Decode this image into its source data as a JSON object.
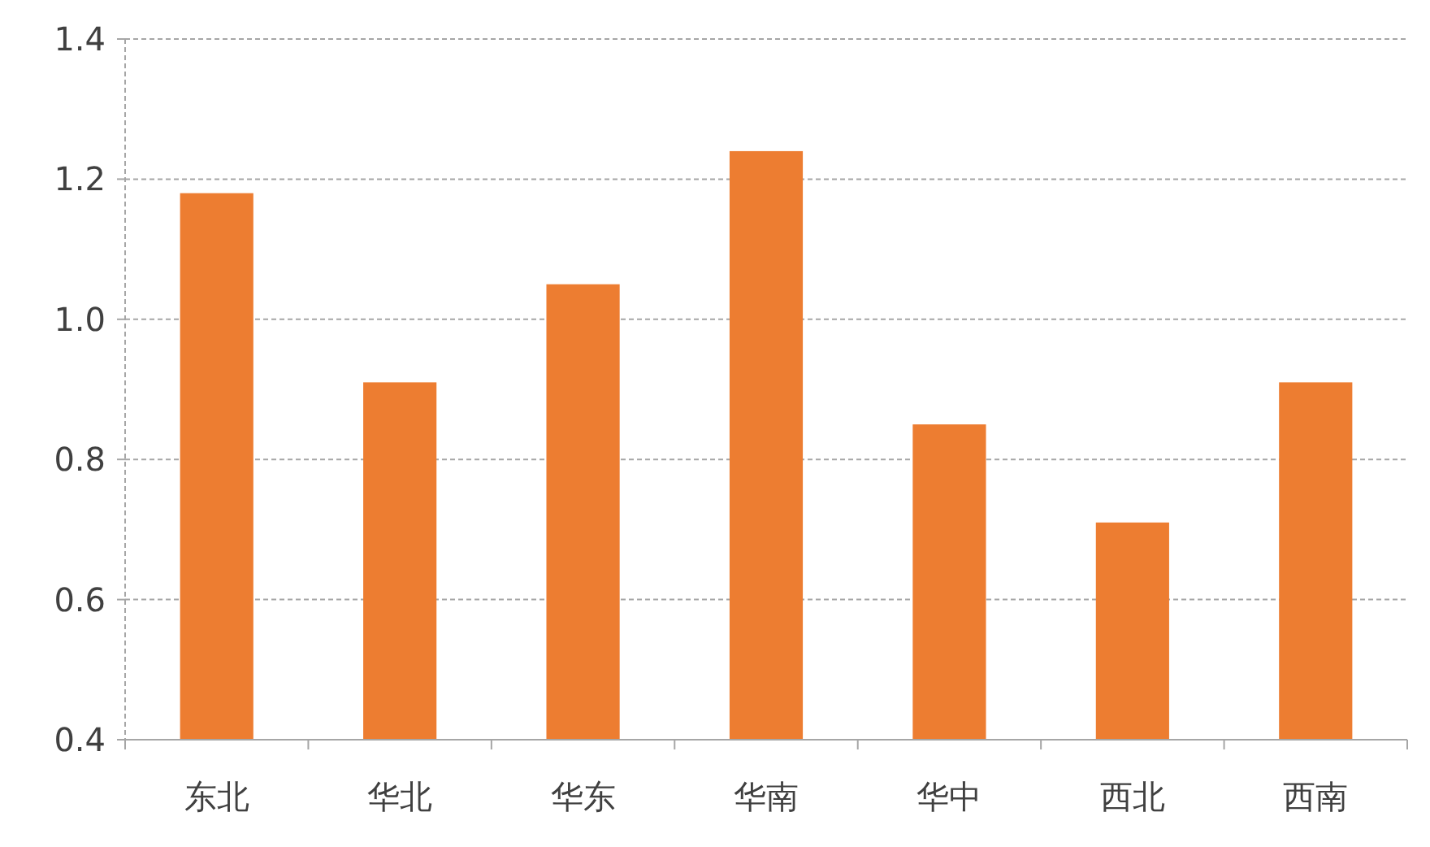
{
  "chart_data": {
    "type": "bar",
    "categories": [
      "东北",
      "华北",
      "华东",
      "华南",
      "华中",
      "西北",
      "西南"
    ],
    "values": [
      1.18,
      0.91,
      1.05,
      1.24,
      0.85,
      0.71,
      0.91
    ],
    "color": "#ed7d31",
    "ylim": [
      0.4,
      1.4
    ],
    "yticks": [
      {
        "value": 0.4,
        "label": "0.4"
      },
      {
        "value": 0.6,
        "label": "0.6"
      },
      {
        "value": 0.8,
        "label": "0.8"
      },
      {
        "value": 1.0,
        "label": "1.0"
      },
      {
        "value": 1.2,
        "label": "1.2"
      },
      {
        "value": 1.4,
        "label": "1.4"
      }
    ],
    "grid": "y"
  }
}
